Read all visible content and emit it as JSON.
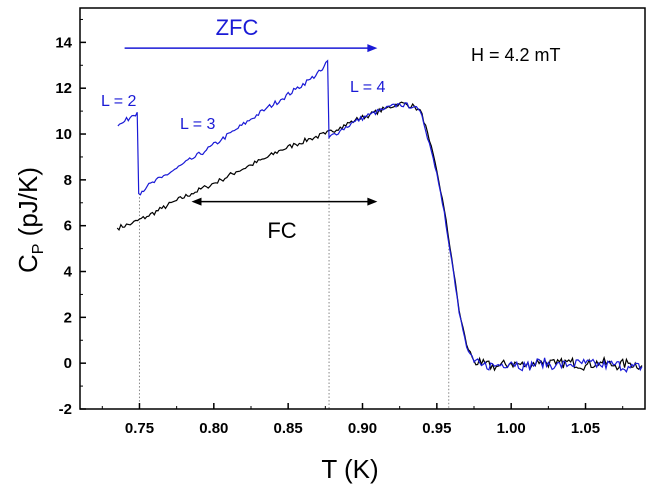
{
  "chart_data": {
    "type": "line",
    "xlabel": "T (K)",
    "ylabel_main": "C",
    "ylabel_sub": "P",
    "ylabel_rest": " (pJ/K)",
    "xlim": [
      0.71,
      1.09
    ],
    "ylim": [
      -2,
      15.5
    ],
    "xticks": [
      0.75,
      0.8,
      0.85,
      0.9,
      0.95,
      1.0,
      1.05
    ],
    "xtick_labels": [
      "0.75",
      "0.80",
      "0.85",
      "0.90",
      "0.95",
      "1.00",
      "1.05"
    ],
    "yticks": [
      -2,
      0,
      2,
      4,
      6,
      8,
      10,
      12,
      14
    ],
    "ytick_labels": [
      "-2",
      "0",
      "2",
      "4",
      "6",
      "8",
      "10",
      "12",
      "14"
    ],
    "field_label": "H = 4.2 mT",
    "colors": {
      "zfc": "#1a1ad6",
      "fc": "#000000",
      "axis": "#000000",
      "guide": "#888888"
    },
    "series": [
      {
        "name": "ZFC",
        "color": "#1a1ad6",
        "points": [
          [
            0.7355,
            10.35
          ],
          [
            0.74,
            10.55
          ],
          [
            0.745,
            10.8
          ],
          [
            0.7485,
            10.95
          ],
          [
            0.7495,
            7.4
          ],
          [
            0.755,
            7.7
          ],
          [
            0.765,
            8.1
          ],
          [
            0.775,
            8.5
          ],
          [
            0.785,
            8.9
          ],
          [
            0.795,
            9.3
          ],
          [
            0.805,
            9.75
          ],
          [
            0.815,
            10.2
          ],
          [
            0.825,
            10.65
          ],
          [
            0.835,
            11.1
          ],
          [
            0.845,
            11.5
          ],
          [
            0.855,
            11.95
          ],
          [
            0.865,
            12.4
          ],
          [
            0.873,
            12.8
          ],
          [
            0.8765,
            13.2
          ],
          [
            0.8775,
            9.85
          ],
          [
            0.885,
            10.15
          ],
          [
            0.895,
            10.55
          ],
          [
            0.905,
            10.85
          ],
          [
            0.915,
            11.1
          ],
          [
            0.925,
            11.3
          ],
          [
            0.935,
            11.2
          ],
          [
            0.94,
            10.8
          ],
          [
            0.945,
            9.6
          ],
          [
            0.95,
            8.3
          ],
          [
            0.955,
            6.6
          ],
          [
            0.96,
            4.5
          ],
          [
            0.965,
            2.2
          ],
          [
            0.97,
            0.7
          ],
          [
            0.975,
            0.05
          ],
          [
            0.98,
            -0.1
          ],
          [
            0.99,
            -0.1
          ],
          [
            1.0,
            0.05
          ],
          [
            1.01,
            -0.15
          ],
          [
            1.02,
            0.05
          ],
          [
            1.03,
            -0.1
          ],
          [
            1.04,
            -0.05
          ],
          [
            1.05,
            0.0
          ],
          [
            1.06,
            -0.1
          ],
          [
            1.07,
            -0.05
          ],
          [
            1.08,
            -0.2
          ],
          [
            1.088,
            -0.15
          ]
        ]
      },
      {
        "name": "FC",
        "color": "#000000",
        "points": [
          [
            0.735,
            5.9
          ],
          [
            0.745,
            6.1
          ],
          [
            0.755,
            6.4
          ],
          [
            0.765,
            6.75
          ],
          [
            0.775,
            7.1
          ],
          [
            0.785,
            7.4
          ],
          [
            0.795,
            7.7
          ],
          [
            0.805,
            8.0
          ],
          [
            0.815,
            8.35
          ],
          [
            0.825,
            8.65
          ],
          [
            0.835,
            8.95
          ],
          [
            0.845,
            9.3
          ],
          [
            0.855,
            9.55
          ],
          [
            0.865,
            9.8
          ],
          [
            0.875,
            10.0
          ],
          [
            0.885,
            10.3
          ],
          [
            0.895,
            10.6
          ],
          [
            0.905,
            10.85
          ],
          [
            0.915,
            11.1
          ],
          [
            0.925,
            11.35
          ],
          [
            0.935,
            11.2
          ],
          [
            0.94,
            10.9
          ],
          [
            0.945,
            9.7
          ],
          [
            0.95,
            8.4
          ],
          [
            0.955,
            6.7
          ],
          [
            0.96,
            4.6
          ],
          [
            0.965,
            2.3
          ],
          [
            0.97,
            0.8
          ],
          [
            0.975,
            0.1
          ],
          [
            0.98,
            -0.05
          ],
          [
            0.99,
            -0.15
          ],
          [
            1.0,
            0.0
          ],
          [
            1.01,
            -0.1
          ],
          [
            1.02,
            0.1
          ],
          [
            1.03,
            -0.05
          ],
          [
            1.04,
            0.05
          ],
          [
            1.05,
            -0.1
          ],
          [
            1.06,
            0.05
          ],
          [
            1.07,
            -0.1
          ],
          [
            1.08,
            0.0
          ],
          [
            1.088,
            -0.1
          ]
        ]
      }
    ],
    "guide_lines": [
      {
        "x": 0.75,
        "y_top": 7.4
      },
      {
        "x": 0.8775,
        "y_top": 9.85
      },
      {
        "x": 0.958,
        "y_top": 5.3
      }
    ],
    "annotations": {
      "zfc_label": "ZFC",
      "zfc_arrow": {
        "x_start": 0.74,
        "x_end": 0.91,
        "y": 13.75
      },
      "fc_label": "FC",
      "fc_arrow": {
        "x_start": 0.785,
        "x_end": 0.91,
        "y": 7.05
      },
      "l2": "L = 2",
      "l3": "L = 3",
      "l4": "L = 4"
    }
  }
}
